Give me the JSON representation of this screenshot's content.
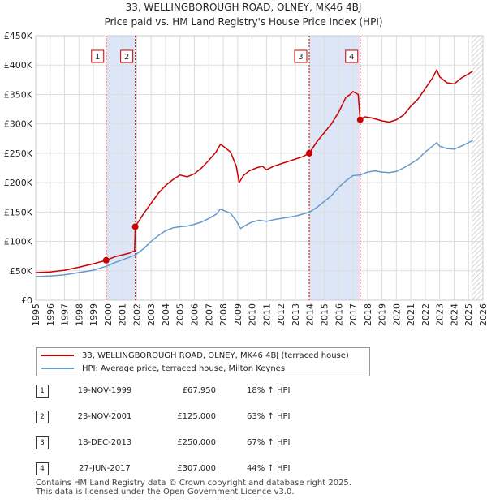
{
  "title_line1": "33, WELLINGBOROUGH ROAD, OLNEY, MK46 4BJ",
  "title_line2": "Price paid vs. HM Land Registry's House Price Index (HPI)",
  "colors": {
    "property": "#cc0000",
    "hpi": "#6699cc",
    "shade": "#dde6f7",
    "vline": "#cc0000",
    "grid": "#dddddd"
  },
  "chart_data": {
    "type": "line",
    "ylim": [
      0,
      450000
    ],
    "xlim": [
      1995,
      2026
    ],
    "y_ticks": [
      0,
      50000,
      100000,
      150000,
      200000,
      250000,
      300000,
      350000,
      400000,
      450000
    ],
    "y_tick_labels": [
      "£0",
      "£50K",
      "£100K",
      "£150K",
      "£200K",
      "£250K",
      "£300K",
      "£350K",
      "£400K",
      "£450K"
    ],
    "x_ticks": [
      1995,
      1996,
      1997,
      1998,
      1999,
      2000,
      2001,
      2002,
      2003,
      2004,
      2005,
      2006,
      2007,
      2008,
      2009,
      2010,
      2011,
      2012,
      2013,
      2014,
      2015,
      2016,
      2017,
      2018,
      2019,
      2020,
      2021,
      2022,
      2023,
      2024,
      2025,
      2026
    ],
    "shaded_ranges": [
      [
        1999.88,
        2001.9
      ],
      [
        2013.96,
        2017.49
      ]
    ],
    "hatched_from": 2025.2,
    "series": [
      {
        "name": "33, WELLINGBOROUGH ROAD, OLNEY, MK46 4BJ (terraced house)",
        "points": [
          [
            1995.0,
            47000
          ],
          [
            1996.0,
            48000
          ],
          [
            1997.0,
            51000
          ],
          [
            1998.0,
            56000
          ],
          [
            1999.0,
            62000
          ],
          [
            1999.88,
            67950
          ],
          [
            2000.5,
            74000
          ],
          [
            2001.5,
            80000
          ],
          [
            2001.85,
            84000
          ],
          [
            2001.9,
            125000
          ],
          [
            2002.5,
            148000
          ],
          [
            2003.0,
            165000
          ],
          [
            2003.5,
            182000
          ],
          [
            2004.0,
            195000
          ],
          [
            2004.5,
            205000
          ],
          [
            2005.0,
            213000
          ],
          [
            2005.5,
            210000
          ],
          [
            2006.0,
            215000
          ],
          [
            2006.5,
            225000
          ],
          [
            2007.0,
            238000
          ],
          [
            2007.5,
            252000
          ],
          [
            2007.8,
            265000
          ],
          [
            2008.0,
            262000
          ],
          [
            2008.5,
            252000
          ],
          [
            2008.9,
            228000
          ],
          [
            2009.1,
            200000
          ],
          [
            2009.4,
            212000
          ],
          [
            2009.8,
            220000
          ],
          [
            2010.3,
            225000
          ],
          [
            2010.7,
            228000
          ],
          [
            2011.0,
            222000
          ],
          [
            2011.5,
            228000
          ],
          [
            2012.0,
            232000
          ],
          [
            2012.5,
            236000
          ],
          [
            2013.0,
            240000
          ],
          [
            2013.5,
            244000
          ],
          [
            2013.96,
            250000
          ],
          [
            2014.5,
            270000
          ],
          [
            2015.0,
            285000
          ],
          [
            2015.5,
            300000
          ],
          [
            2016.0,
            320000
          ],
          [
            2016.5,
            345000
          ],
          [
            2016.8,
            350000
          ],
          [
            2017.0,
            355000
          ],
          [
            2017.2,
            352000
          ],
          [
            2017.35,
            350000
          ],
          [
            2017.49,
            307000
          ],
          [
            2017.8,
            312000
          ],
          [
            2018.3,
            310000
          ],
          [
            2019.0,
            305000
          ],
          [
            2019.5,
            303000
          ],
          [
            2020.0,
            307000
          ],
          [
            2020.5,
            315000
          ],
          [
            2021.0,
            330000
          ],
          [
            2021.5,
            342000
          ],
          [
            2022.0,
            360000
          ],
          [
            2022.5,
            378000
          ],
          [
            2022.8,
            392000
          ],
          [
            2023.0,
            380000
          ],
          [
            2023.5,
            370000
          ],
          [
            2024.0,
            368000
          ],
          [
            2024.5,
            378000
          ],
          [
            2025.0,
            385000
          ],
          [
            2025.3,
            390000
          ]
        ]
      },
      {
        "name": "HPI: Average price, terraced house, Milton Keynes",
        "points": [
          [
            1995.0,
            40000
          ],
          [
            1996.0,
            41000
          ],
          [
            1997.0,
            43000
          ],
          [
            1998.0,
            47000
          ],
          [
            1999.0,
            51000
          ],
          [
            1999.88,
            57500
          ],
          [
            2000.5,
            64000
          ],
          [
            2001.5,
            73000
          ],
          [
            2001.9,
            76700
          ],
          [
            2002.5,
            88000
          ],
          [
            2003.0,
            100000
          ],
          [
            2003.5,
            110000
          ],
          [
            2004.0,
            118000
          ],
          [
            2004.5,
            123000
          ],
          [
            2005.0,
            125000
          ],
          [
            2005.5,
            126000
          ],
          [
            2006.0,
            129000
          ],
          [
            2006.5,
            133000
          ],
          [
            2007.0,
            139000
          ],
          [
            2007.5,
            146000
          ],
          [
            2007.8,
            155000
          ],
          [
            2008.0,
            153000
          ],
          [
            2008.5,
            148000
          ],
          [
            2008.9,
            135000
          ],
          [
            2009.2,
            122000
          ],
          [
            2009.6,
            128000
          ],
          [
            2010.0,
            133000
          ],
          [
            2010.5,
            136000
          ],
          [
            2011.0,
            134000
          ],
          [
            2011.5,
            137000
          ],
          [
            2012.0,
            139000
          ],
          [
            2012.5,
            141000
          ],
          [
            2013.0,
            143000
          ],
          [
            2013.96,
            149700
          ],
          [
            2014.5,
            158000
          ],
          [
            2015.0,
            168000
          ],
          [
            2015.5,
            178000
          ],
          [
            2016.0,
            192000
          ],
          [
            2016.5,
            203000
          ],
          [
            2017.0,
            212000
          ],
          [
            2017.49,
            213000
          ],
          [
            2018.0,
            218000
          ],
          [
            2018.5,
            220000
          ],
          [
            2019.0,
            218000
          ],
          [
            2019.5,
            217000
          ],
          [
            2020.0,
            219000
          ],
          [
            2020.5,
            225000
          ],
          [
            2021.0,
            232000
          ],
          [
            2021.5,
            240000
          ],
          [
            2022.0,
            252000
          ],
          [
            2022.5,
            262000
          ],
          [
            2022.8,
            268000
          ],
          [
            2023.0,
            262000
          ],
          [
            2023.5,
            258000
          ],
          [
            2024.0,
            257000
          ],
          [
            2024.5,
            262000
          ],
          [
            2025.0,
            268000
          ],
          [
            2025.3,
            272000
          ]
        ]
      }
    ],
    "sales": [
      {
        "label": "1",
        "x": 1999.88,
        "price": 67950
      },
      {
        "label": "2",
        "x": 2001.9,
        "price": 125000
      },
      {
        "label": "3",
        "x": 2013.96,
        "price": 250000
      },
      {
        "label": "4",
        "x": 2017.49,
        "price": 307000
      }
    ]
  },
  "legend": {
    "property_label": "33, WELLINGBOROUGH ROAD, OLNEY, MK46 4BJ (terraced house)",
    "hpi_label": "HPI: Average price, terraced house, Milton Keynes"
  },
  "sales_table": [
    {
      "num": "1",
      "date": "19-NOV-1999",
      "price": "£67,950",
      "pct": "18% ↑ HPI"
    },
    {
      "num": "2",
      "date": "23-NOV-2001",
      "price": "£125,000",
      "pct": "63% ↑ HPI"
    },
    {
      "num": "3",
      "date": "18-DEC-2013",
      "price": "£250,000",
      "pct": "67% ↑ HPI"
    },
    {
      "num": "4",
      "date": "27-JUN-2017",
      "price": "£307,000",
      "pct": "44% ↑ HPI"
    }
  ],
  "footer_line1": "Contains HM Land Registry data © Crown copyright and database right 2025.",
  "footer_line2": "This data is licensed under the Open Government Licence v3.0."
}
